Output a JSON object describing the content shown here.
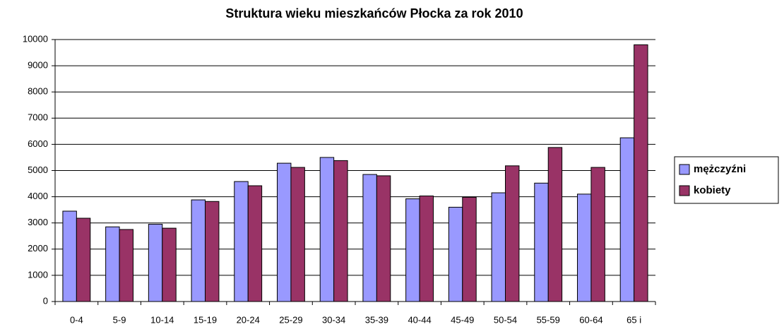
{
  "chart_data": {
    "type": "bar",
    "title": "Struktura wieku mieszkańców Płocka za rok 2010",
    "categories": [
      "0-4",
      "5-9",
      "10-14",
      "15-19",
      "20-24",
      "25-29",
      "30-34",
      "35-39",
      "40-44",
      "45-49",
      "50-54",
      "55-59",
      "60-64",
      "65 i"
    ],
    "series": [
      {
        "name": "mężczyźni",
        "color": "#9999ff",
        "values": [
          3450,
          2850,
          2950,
          3880,
          4580,
          5280,
          5500,
          4850,
          3920,
          3600,
          4150,
          4520,
          4100,
          6250
        ]
      },
      {
        "name": "kobiety",
        "color": "#993366",
        "values": [
          3180,
          2750,
          2800,
          3820,
          4420,
          5120,
          5380,
          4800,
          4030,
          3980,
          5180,
          5880,
          5120,
          9800
        ]
      }
    ],
    "ylim": [
      0,
      10000
    ],
    "yticks": [
      0,
      1000,
      2000,
      3000,
      4000,
      5000,
      6000,
      7000,
      8000,
      9000,
      10000
    ],
    "grid": true,
    "legend": "right"
  }
}
